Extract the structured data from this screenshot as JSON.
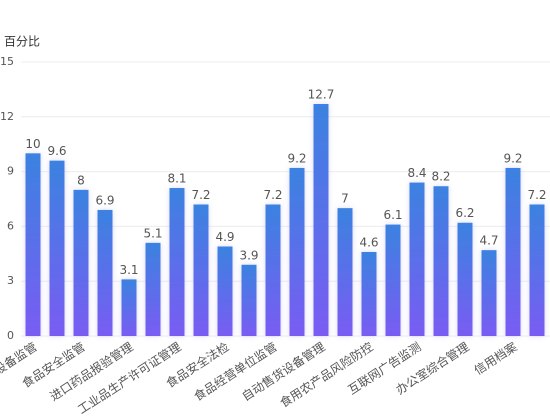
{
  "chart_data": {
    "type": "bar",
    "y_label": "百分比",
    "categories": [
      "设备监管",
      null,
      "食品安全监管",
      null,
      "进口药品报验管理",
      null,
      "工业品生产许可证管理",
      null,
      "食品安全法检",
      null,
      "食品经营单位监管",
      null,
      "自动售货设备管理",
      null,
      "食用农产品风险防控",
      null,
      "互联网广告监测",
      null,
      "办公室综合管理",
      null,
      "信用档案",
      null
    ],
    "values": [
      10,
      9.6,
      8,
      6.9,
      3.1,
      5.1,
      8.1,
      7.2,
      4.9,
      3.9,
      7.2,
      9.2,
      12.7,
      7,
      4.6,
      6.1,
      8.4,
      8.2,
      6.2,
      4.7,
      9.2,
      7.2
    ],
    "gradient": [
      "#3b82e0",
      "#7a5cf3"
    ],
    "ylim": [
      0,
      15
    ],
    "yticks": [
      0,
      3,
      6,
      9,
      12,
      15
    ],
    "grid": true
  }
}
